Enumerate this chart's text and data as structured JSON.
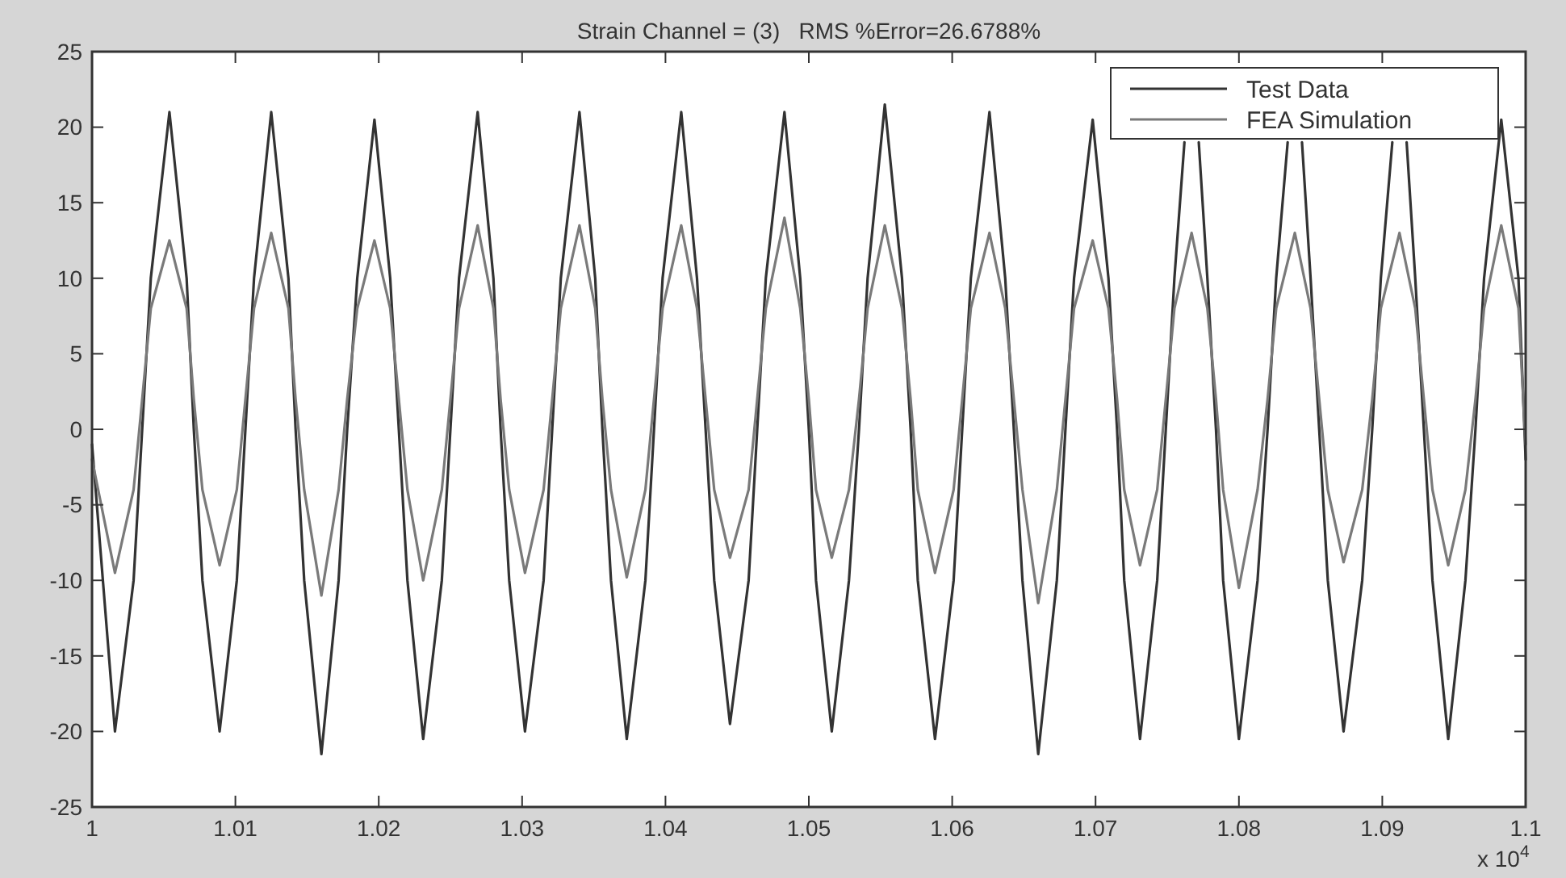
{
  "chart_data": {
    "type": "line",
    "title": "Strain Channel = (3)   RMS %Error=26.6788%",
    "xlim": [
      1,
      1.1
    ],
    "xticks": [
      1,
      1.01,
      1.02,
      1.03,
      1.04,
      1.05,
      1.06,
      1.07,
      1.08,
      1.09,
      1.1
    ],
    "ylim": [
      -25,
      25
    ],
    "yticks": [
      -25,
      -20,
      -15,
      -10,
      -5,
      0,
      5,
      10,
      15,
      20,
      25
    ],
    "grid": false,
    "legend": "top right",
    "marker": "none",
    "line_style": "solid",
    "annotations": [
      "x 10$^{4}$"
    ],
    "series": [
      {
        "name": "Test Data",
        "color": "#333333",
        "x": [
          1,
          1.0016,
          1.0029,
          1.0035,
          1.0041,
          1.0054,
          1.0066,
          1.0071,
          1.0077,
          1.0089,
          1.0101,
          1.0107,
          1.0113,
          1.0125,
          1.0137,
          1.0142,
          1.0148,
          1.016,
          1.0172,
          1.0178,
          1.0185,
          1.0197,
          1.0208,
          1.0214,
          1.022,
          1.0231,
          1.0244,
          1.025,
          1.0256,
          1.0269,
          1.028,
          1.0285,
          1.0291,
          1.0302,
          1.0315,
          1.0321,
          1.0327,
          1.034,
          1.0351,
          1.0356,
          1.0362,
          1.0373,
          1.0386,
          1.0392,
          1.0398,
          1.0411,
          1.0422,
          1.0428,
          1.0434,
          1.0445,
          1.0458,
          1.0464,
          1.047,
          1.0483,
          1.0494,
          1.05,
          1.0505,
          1.0516,
          1.0528,
          1.0535,
          1.0541,
          1.0553,
          1.0565,
          1.0571,
          1.0576,
          1.0588,
          1.0601,
          1.0607,
          1.0613,
          1.0626,
          1.0637,
          1.0643,
          1.0649,
          1.066,
          1.0673,
          1.0679,
          1.0685,
          1.0698,
          1.0709,
          1.0715,
          1.072,
          1.0731,
          1.0743,
          1.0749,
          1.0755,
          1.0762,
          1.0767,
          1.0772,
          1.0778,
          1.0784,
          1.0789,
          1.08,
          1.0813,
          1.082,
          1.0826,
          1.0834,
          1.0839,
          1.0844,
          1.085,
          1.0856,
          1.0862,
          1.0873,
          1.0886,
          1.0893,
          1.0899,
          1.0907,
          1.0912,
          1.0917,
          1.0923,
          1.0929,
          1.0935,
          1.0946,
          1.0958,
          1.0965,
          1.0971,
          1.0983,
          1.0995,
          1.1
        ],
        "values": [
          -1,
          -20,
          -10,
          0,
          10,
          21,
          10,
          0,
          -10,
          -20,
          -10,
          0,
          10,
          21,
          10,
          0,
          -10,
          -21.5,
          -10,
          0,
          10,
          20.5,
          10,
          0,
          -10,
          -20.5,
          -10,
          0,
          10,
          21,
          10,
          0,
          -10,
          -20,
          -10,
          0,
          10,
          21,
          10,
          0,
          -10,
          -20.5,
          -10,
          0,
          10,
          21,
          10,
          0,
          -10,
          -19.5,
          -10,
          0,
          10,
          21,
          10,
          0,
          -10,
          -20,
          -10,
          0,
          10,
          21.5,
          10,
          0,
          -10,
          -20.5,
          -10,
          0,
          10,
          21,
          10,
          0,
          -10,
          -21.5,
          -10,
          0,
          10,
          20.5,
          10,
          0,
          -10,
          -20.5,
          -10,
          0,
          10,
          19,
          null,
          19,
          10,
          0,
          -10,
          -20.5,
          -10,
          0,
          10,
          19,
          null,
          19,
          10,
          0,
          -10,
          -20,
          -10,
          0,
          10,
          19,
          null,
          19,
          10,
          0,
          -10,
          -20.5,
          -10,
          0,
          10,
          20.5,
          10,
          -2
        ]
      },
      {
        "name": "FEA Simulation",
        "color": "#7a7a7a",
        "x": [
          1,
          1.0016,
          1.0029,
          1.0035,
          1.0041,
          1.0054,
          1.0066,
          1.0071,
          1.0077,
          1.0089,
          1.0101,
          1.0107,
          1.0113,
          1.0125,
          1.0137,
          1.0142,
          1.0148,
          1.016,
          1.0172,
          1.0178,
          1.0185,
          1.0197,
          1.0208,
          1.0214,
          1.022,
          1.0231,
          1.0244,
          1.025,
          1.0256,
          1.0269,
          1.028,
          1.0285,
          1.0291,
          1.0302,
          1.0315,
          1.0321,
          1.0327,
          1.034,
          1.0351,
          1.0356,
          1.0362,
          1.0373,
          1.0386,
          1.0392,
          1.0398,
          1.0411,
          1.0422,
          1.0428,
          1.0434,
          1.0445,
          1.0458,
          1.0464,
          1.047,
          1.0483,
          1.0494,
          1.05,
          1.0505,
          1.0516,
          1.0528,
          1.0535,
          1.0541,
          1.0553,
          1.0565,
          1.0571,
          1.0576,
          1.0588,
          1.0601,
          1.0607,
          1.0613,
          1.0626,
          1.0637,
          1.0643,
          1.0649,
          1.066,
          1.0673,
          1.0679,
          1.0685,
          1.0698,
          1.0709,
          1.0715,
          1.072,
          1.0731,
          1.0743,
          1.0749,
          1.0755,
          1.0767,
          1.0778,
          1.0784,
          1.0789,
          1.08,
          1.0813,
          1.082,
          1.0826,
          1.0839,
          1.085,
          1.0856,
          1.0862,
          1.0873,
          1.0886,
          1.0893,
          1.0899,
          1.0912,
          1.0923,
          1.0929,
          1.0935,
          1.0946,
          1.0958,
          1.0965,
          1.0971,
          1.0983,
          1.0995,
          1.1
        ],
        "values": [
          -2,
          -9.5,
          -4,
          2,
          8,
          12.5,
          8,
          2,
          -4,
          -9,
          -4,
          2,
          8,
          13,
          8,
          2,
          -4,
          -11,
          -4,
          2,
          8,
          12.5,
          8,
          2,
          -4,
          -10,
          -4,
          2,
          8,
          13.5,
          8,
          2,
          -4,
          -9.5,
          -4,
          2,
          8,
          13.5,
          8,
          2,
          -4,
          -9.8,
          -4,
          2,
          8,
          13.5,
          8,
          2,
          -4,
          -8.5,
          -4,
          2,
          8,
          14,
          8,
          2,
          -4,
          -8.5,
          -4,
          2,
          8,
          13.5,
          8,
          2,
          -4,
          -9.5,
          -4,
          2,
          8,
          13,
          8,
          2,
          -4,
          -11.5,
          -4,
          2,
          8,
          12.5,
          8,
          2,
          -4,
          -9,
          -4,
          2,
          8,
          13,
          8,
          2,
          -4,
          -10.5,
          -4,
          2,
          8,
          13,
          8,
          2,
          -4,
          -8.8,
          -4,
          2,
          8,
          13,
          8,
          2,
          -4,
          -9,
          -4,
          2,
          8,
          13.5,
          8,
          -1
        ]
      }
    ]
  }
}
